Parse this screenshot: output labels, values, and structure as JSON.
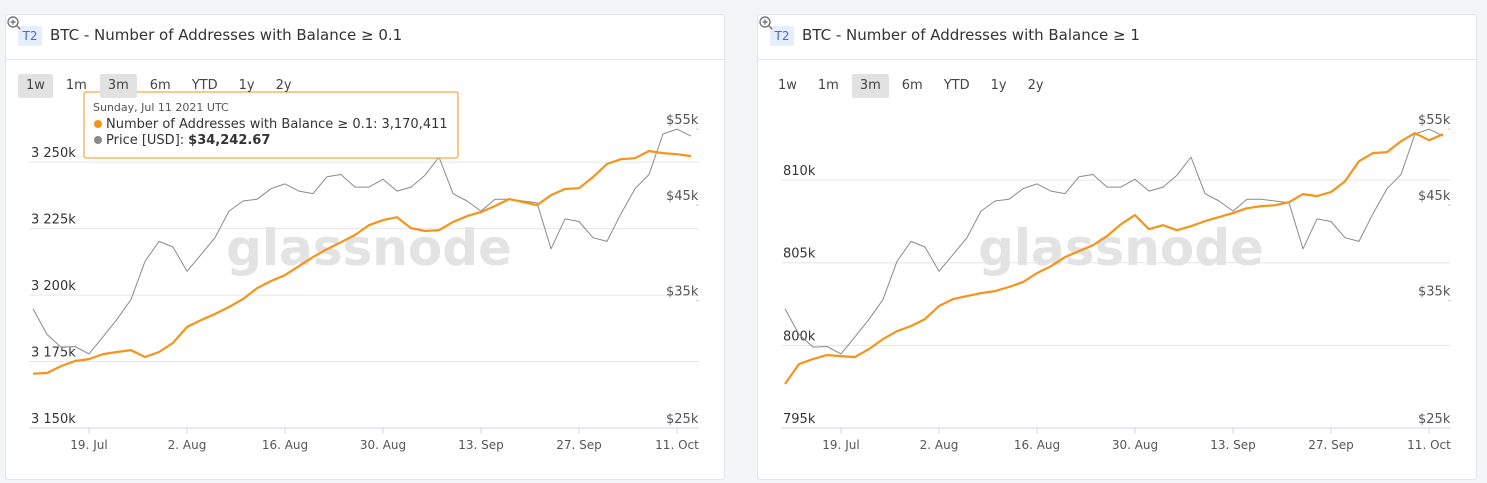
{
  "chart_data": [
    {
      "type": "line",
      "title": "BTC - Number of Addresses with Balance ≥ 0.1",
      "x": [
        "2021-07-11",
        "2021-07-13",
        "2021-07-15",
        "2021-07-17",
        "2021-07-19",
        "2021-07-21",
        "2021-07-23",
        "2021-07-25",
        "2021-07-27",
        "2021-07-29",
        "2021-07-31",
        "2021-08-02",
        "2021-08-04",
        "2021-08-06",
        "2021-08-08",
        "2021-08-10",
        "2021-08-12",
        "2021-08-14",
        "2021-08-16",
        "2021-08-18",
        "2021-08-20",
        "2021-08-22",
        "2021-08-24",
        "2021-08-26",
        "2021-08-28",
        "2021-08-30",
        "2021-09-01",
        "2021-09-03",
        "2021-09-05",
        "2021-09-07",
        "2021-09-09",
        "2021-09-11",
        "2021-09-13",
        "2021-09-15",
        "2021-09-17",
        "2021-09-19",
        "2021-09-21",
        "2021-09-23",
        "2021-09-25",
        "2021-09-27",
        "2021-09-29",
        "2021-10-01",
        "2021-10-03",
        "2021-10-05",
        "2021-10-07",
        "2021-10-09",
        "2021-10-11",
        "2021-10-13"
      ],
      "xlim": [
        "2021-07-11",
        "2021-10-14"
      ],
      "xticks": [
        {
          "value": "2021-07-19",
          "label": "19. Jul"
        },
        {
          "value": "2021-08-02",
          "label": "2. Aug"
        },
        {
          "value": "2021-08-16",
          "label": "16. Aug"
        },
        {
          "value": "2021-08-30",
          "label": "30. Aug"
        },
        {
          "value": "2021-09-13",
          "label": "13. Sep"
        },
        {
          "value": "2021-09-27",
          "label": "27. Sep"
        },
        {
          "value": "2021-10-11",
          "label": "11. Oct"
        }
      ],
      "ylim": [
        3150000,
        3270000
      ],
      "yticks": [
        {
          "value": 3150000,
          "label": "3 150k"
        },
        {
          "value": 3175000,
          "label": "3 175k"
        },
        {
          "value": 3200000,
          "label": "3 200k"
        },
        {
          "value": 3225000,
          "label": "3 225k"
        },
        {
          "value": 3250000,
          "label": "3 250k"
        }
      ],
      "y2lim": [
        25000,
        58000
      ],
      "y2scale": "log",
      "y2ticks": [
        {
          "value": 25000,
          "label": "$25k"
        },
        {
          "value": 35000,
          "label": "$35k"
        },
        {
          "value": 45000,
          "label": "$45k"
        },
        {
          "value": 55000,
          "label": "$55k"
        }
      ],
      "grid": true,
      "series": [
        {
          "color": "#f7931a",
          "values": [
            3170411,
            3170700,
            3173300,
            3175200,
            3175900,
            3177800,
            3178600,
            3179300,
            3176700,
            3178600,
            3182000,
            3188000,
            3190600,
            3192900,
            3195500,
            3198500,
            3202600,
            3205300,
            3207500,
            3210900,
            3214300,
            3217300,
            3219900,
            3222600,
            3226300,
            3228200,
            3229300,
            3225200,
            3224100,
            3224400,
            3227500,
            3229700,
            3231200,
            3233500,
            3236100,
            3235000,
            3233800,
            3237600,
            3239900,
            3240200,
            3244400,
            3249300,
            3251100,
            3251500,
            3254200,
            3253400,
            3253000,
            3252300
          ]
        },
        {
          "color": "#8a8a8a",
          "axis": "y2",
          "values": [
            34242.67,
            32000,
            30950,
            31000,
            30400,
            31800,
            33300,
            35100,
            38800,
            40900,
            40300,
            37800,
            39500,
            41300,
            44300,
            45500,
            45700,
            47000,
            47600,
            46700,
            46400,
            48500,
            48800,
            47200,
            47200,
            48200,
            46700,
            47200,
            48700,
            51100,
            46400,
            45500,
            44300,
            45700,
            45700,
            45500,
            45300,
            40100,
            43400,
            43100,
            41300,
            40900,
            44000,
            47000,
            48800,
            54300,
            55000,
            54000
          ]
        }
      ]
    },
    {
      "type": "line",
      "title": "BTC - Number of Addresses with Balance ≥ 1",
      "x": [
        "2021-07-11",
        "2021-07-13",
        "2021-07-15",
        "2021-07-17",
        "2021-07-19",
        "2021-07-21",
        "2021-07-23",
        "2021-07-25",
        "2021-07-27",
        "2021-07-29",
        "2021-07-31",
        "2021-08-02",
        "2021-08-04",
        "2021-08-06",
        "2021-08-08",
        "2021-08-10",
        "2021-08-12",
        "2021-08-14",
        "2021-08-16",
        "2021-08-18",
        "2021-08-20",
        "2021-08-22",
        "2021-08-24",
        "2021-08-26",
        "2021-08-28",
        "2021-08-30",
        "2021-09-01",
        "2021-09-03",
        "2021-09-05",
        "2021-09-07",
        "2021-09-09",
        "2021-09-11",
        "2021-09-13",
        "2021-09-15",
        "2021-09-17",
        "2021-09-19",
        "2021-09-21",
        "2021-09-23",
        "2021-09-25",
        "2021-09-27",
        "2021-09-29",
        "2021-10-01",
        "2021-10-03",
        "2021-10-05",
        "2021-10-07",
        "2021-10-09",
        "2021-10-11",
        "2021-10-13"
      ],
      "xlim": [
        "2021-07-11",
        "2021-10-14"
      ],
      "xticks": [
        {
          "value": "2021-07-19",
          "label": "19. Jul"
        },
        {
          "value": "2021-08-02",
          "label": "2. Aug"
        },
        {
          "value": "2021-08-16",
          "label": "16. Aug"
        },
        {
          "value": "2021-08-30",
          "label": "30. Aug"
        },
        {
          "value": "2021-09-13",
          "label": "13. Sep"
        },
        {
          "value": "2021-09-27",
          "label": "27. Sep"
        },
        {
          "value": "2021-10-11",
          "label": "11. Oct"
        }
      ],
      "ylim": [
        795000,
        814300
      ],
      "yticks": [
        {
          "value": 795000,
          "label": "795k"
        },
        {
          "value": 800000,
          "label": "800k"
        },
        {
          "value": 805000,
          "label": "805k"
        },
        {
          "value": 810000,
          "label": "810k"
        }
      ],
      "y2lim": [
        25000,
        58000
      ],
      "y2scale": "log",
      "y2ticks": [
        {
          "value": 25000,
          "label": "$25k"
        },
        {
          "value": 35000,
          "label": "$35k"
        },
        {
          "value": 45000,
          "label": "$45k"
        },
        {
          "value": 55000,
          "label": "$55k"
        }
      ],
      "grid": true,
      "series": [
        {
          "color": "#f7931a",
          "values": [
            797660,
            798870,
            799170,
            799410,
            799350,
            799290,
            799780,
            800380,
            800860,
            801170,
            801590,
            802380,
            802800,
            802980,
            803160,
            803280,
            803530,
            803830,
            804370,
            804790,
            805340,
            805700,
            806060,
            806610,
            807330,
            807880,
            807030,
            807270,
            806970,
            807210,
            807520,
            807760,
            808000,
            808300,
            808420,
            808480,
            808660,
            809150,
            809030,
            809270,
            809930,
            811140,
            811630,
            811690,
            812350,
            812840,
            812410,
            812780
          ]
        },
        {
          "color": "#8a8a8a",
          "axis": "y2",
          "values": [
            34242.67,
            32000,
            30950,
            31000,
            30400,
            31800,
            33300,
            35100,
            38800,
            40900,
            40300,
            37800,
            39500,
            41300,
            44300,
            45500,
            45700,
            47000,
            47600,
            46700,
            46400,
            48500,
            48800,
            47200,
            47200,
            48200,
            46700,
            47200,
            48700,
            51100,
            46400,
            45500,
            44300,
            45700,
            45700,
            45500,
            45300,
            40100,
            43400,
            43100,
            41300,
            40900,
            44000,
            47000,
            48800,
            54300,
            55000,
            54000
          ]
        }
      ]
    }
  ],
  "panels": [
    {
      "badge": "T2",
      "ranges": [
        "1w",
        "1m",
        "3m",
        "6m",
        "YTD",
        "1y",
        "2y"
      ],
      "active": [
        "1w",
        "3m"
      ],
      "watermark": "glassnode",
      "tooltip": {
        "title": "Sunday, Jul 11 2021 UTC",
        "items": [
          {
            "label": "Number of Addresses with Balance ≥ 0.1:",
            "value": "3,170,411"
          },
          {
            "label": "Price [USD]:",
            "value": "$34,242.67"
          }
        ]
      }
    },
    {
      "badge": "T2",
      "ranges": [
        "1w",
        "1m",
        "3m",
        "6m",
        "YTD",
        "1y",
        "2y"
      ],
      "active": [
        "3m"
      ],
      "watermark": "glassnode"
    }
  ]
}
